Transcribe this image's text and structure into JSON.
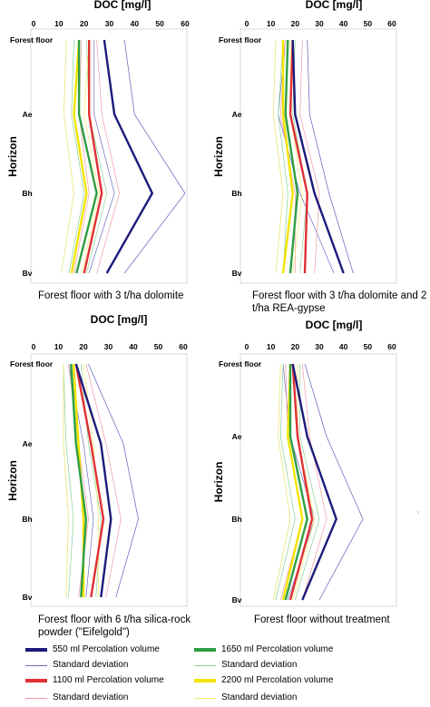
{
  "chart_data": [
    {
      "type": "line",
      "title": "DOC [mg/l]",
      "xlabel": "DOC [mg/l]",
      "ylabel": "Horizon",
      "xlim": [
        0,
        60
      ],
      "xticks": [
        "0",
        "10",
        "20",
        "30",
        "40",
        "50",
        "60"
      ],
      "categories": [
        "Forest floor",
        "Ae",
        "Bh",
        "Bv"
      ],
      "caption": "Forest floor with 3 t/ha dolomite",
      "series": [
        {
          "name": "550 ml Percolation volume",
          "values": [
            28,
            32,
            47,
            29
          ]
        },
        {
          "name": "1100 ml Percolation volume",
          "values": [
            22,
            22,
            27,
            20
          ]
        },
        {
          "name": "1650 ml Percolation volume",
          "values": [
            18,
            18,
            25,
            17
          ]
        },
        {
          "name": "2200 ml Percolation volume",
          "values": [
            18,
            16,
            21,
            15
          ]
        }
      ],
      "deviation": [
        {
          "series": "550 ml Percolation volume",
          "low": [
            24,
            24,
            32,
            22
          ],
          "high": [
            36,
            40,
            60,
            36
          ]
        },
        {
          "series": "1100 ml Percolation volume",
          "low": [
            19,
            18,
            22,
            16
          ],
          "high": [
            25,
            27,
            34,
            25
          ]
        },
        {
          "series": "1650 ml Percolation volume",
          "low": [
            16,
            15,
            20,
            14
          ],
          "high": [
            21,
            22,
            29,
            21
          ]
        },
        {
          "series": "2200 ml Percolation volume",
          "low": [
            13,
            12,
            16,
            11
          ],
          "high": [
            22,
            20,
            26,
            19
          ]
        }
      ]
    },
    {
      "type": "line",
      "title": "DOC [mg/l]",
      "xlabel": "DOC [mg/l]",
      "ylabel": "Horizon",
      "xlim": [
        0,
        60
      ],
      "xticks": [
        "0",
        "10",
        "20",
        "30",
        "40",
        "50",
        "60"
      ],
      "categories": [
        "Forest floor",
        "Ae",
        "Bh",
        "Bv"
      ],
      "caption": "Forest floor with 3 t/ha dolomite and 2 t/ha REA-gypse",
      "series": [
        {
          "name": "550 ml Percolation volume",
          "values": [
            19,
            20,
            28,
            40
          ]
        },
        {
          "name": "1100 ml Percolation volume",
          "values": [
            19,
            18,
            25,
            24
          ]
        },
        {
          "name": "1650 ml Percolation volume",
          "values": [
            17,
            16,
            21,
            18
          ]
        },
        {
          "name": "2200 ml Percolation volume",
          "values": [
            15,
            15,
            19,
            15
          ]
        }
      ],
      "deviation": [
        {
          "series": "550 ml Percolation volume",
          "low": [
            16,
            13,
            22,
            36
          ],
          "high": [
            25,
            26,
            34,
            44
          ]
        },
        {
          "series": "1100 ml Percolation volume",
          "low": [
            16,
            14,
            20,
            20
          ],
          "high": [
            23,
            22,
            30,
            28
          ]
        },
        {
          "series": "1650 ml Percolation volume",
          "low": [
            15,
            13,
            17,
            15
          ],
          "high": [
            20,
            19,
            25,
            22
          ]
        },
        {
          "series": "2200 ml Percolation volume",
          "low": [
            12,
            11,
            15,
            12
          ],
          "high": [
            18,
            18,
            23,
            19
          ]
        }
      ]
    },
    {
      "type": "line",
      "title": "DOC [mg/l]",
      "xlabel": "DOC [mg/l]",
      "ylabel": "Horizon",
      "xlim": [
        0,
        60
      ],
      "xticks": [
        "0",
        "10",
        "20",
        "30",
        "40",
        "50",
        "60"
      ],
      "categories": [
        "Forest floor",
        "Ae",
        "Bh",
        "Bv"
      ],
      "caption": "Forest floor with 6 t/ha silica-rock powder (\"Eifelgold\")",
      "series": [
        {
          "name": "550 ml Percolation volume",
          "values": [
            17,
            27,
            31,
            27
          ]
        },
        {
          "name": "1100 ml Percolation volume",
          "values": [
            17,
            23,
            28,
            23
          ]
        },
        {
          "name": "1650 ml Percolation volume",
          "values": [
            15,
            17,
            21,
            19
          ]
        },
        {
          "name": "2200 ml Percolation volume",
          "values": [
            16,
            18,
            20,
            20
          ]
        }
      ],
      "deviation": [
        {
          "series": "550 ml Percolation volume",
          "low": [
            14,
            20,
            24,
            21
          ],
          "high": [
            22,
            36,
            42,
            33
          ]
        },
        {
          "series": "1100 ml Percolation volume",
          "low": [
            14,
            18,
            22,
            18
          ],
          "high": [
            21,
            29,
            35,
            29
          ]
        },
        {
          "series": "1650 ml Percolation volume",
          "low": [
            12,
            13,
            16,
            14
          ],
          "high": [
            19,
            22,
            27,
            25
          ]
        },
        {
          "series": "2200 ml Percolation volume",
          "low": [
            12,
            12,
            14,
            13
          ],
          "high": [
            20,
            24,
            26,
            26
          ]
        }
      ]
    },
    {
      "type": "line",
      "title": "DOC [mg/l]",
      "xlabel": "DOC [mg/l]",
      "ylabel": "Horizon",
      "xlim": [
        0,
        60
      ],
      "xticks": [
        "0",
        "10",
        "20",
        "30",
        "40",
        "50",
        "60"
      ],
      "categories": [
        "Forest floor",
        "Ae",
        "Bh",
        "Bv"
      ],
      "caption": "Forest floor without treatment",
      "series": [
        {
          "name": "550 ml Percolation volume",
          "values": [
            19,
            25,
            37,
            23
          ]
        },
        {
          "name": "1100 ml Percolation volume",
          "values": [
            19,
            21,
            27,
            18
          ]
        },
        {
          "name": "1650 ml Percolation volume",
          "values": [
            18,
            18,
            25,
            16
          ]
        },
        {
          "name": "2200 ml Percolation volume",
          "values": [
            18,
            17,
            23,
            15
          ]
        }
      ],
      "deviation": [
        {
          "series": "550 ml Percolation volume",
          "low": [
            15,
            18,
            28,
            17
          ],
          "high": [
            24,
            33,
            48,
            30
          ]
        },
        {
          "series": "1100 ml Percolation volume",
          "low": [
            16,
            17,
            23,
            14
          ],
          "high": [
            23,
            26,
            33,
            23
          ]
        },
        {
          "series": "1650 ml Percolation volume",
          "low": [
            15,
            14,
            20,
            12
          ],
          "high": [
            22,
            22,
            30,
            20
          ]
        },
        {
          "series": "2200 ml Percolation volume",
          "low": [
            14,
            13,
            18,
            11
          ],
          "high": [
            21,
            21,
            28,
            19
          ]
        }
      ]
    }
  ],
  "colors": {
    "550 ml Percolation volume": "#1c1a7a",
    "1100 ml Percolation volume": "#e03034",
    "1650 ml Percolation volume": "#2e9e44",
    "2200 ml Percolation volume": "#f2e400",
    "sd_550": "#6b6bc4",
    "sd_1100": "#f19aa0",
    "sd_1650": "#8bd098",
    "sd_2200": "#f5ee70",
    "panel_border": "#cfcfcf",
    "grey_line": "#c8c8c8"
  },
  "legend": {
    "items": [
      {
        "label": "550 ml Percolation volume",
        "color": "#1c1a7a",
        "thick": true
      },
      {
        "label": "1650 ml Percolation volume",
        "color": "#2e9e44",
        "thick": true
      },
      {
        "label": "Standard deviation",
        "color": "#6b6bc4",
        "thick": false
      },
      {
        "label": "Standard deviation",
        "color": "#8bd098",
        "thick": false
      },
      {
        "label": "1100 ml Percolation volume",
        "color": "#e03034",
        "thick": true
      },
      {
        "label": "2200 ml Percolation volume",
        "color": "#f2e400",
        "thick": true
      },
      {
        "label": "Standard deviation",
        "color": "#f19aa0",
        "thick": false
      },
      {
        "label": "Standard deviation",
        "color": "#f5ee70",
        "thick": false
      }
    ]
  }
}
